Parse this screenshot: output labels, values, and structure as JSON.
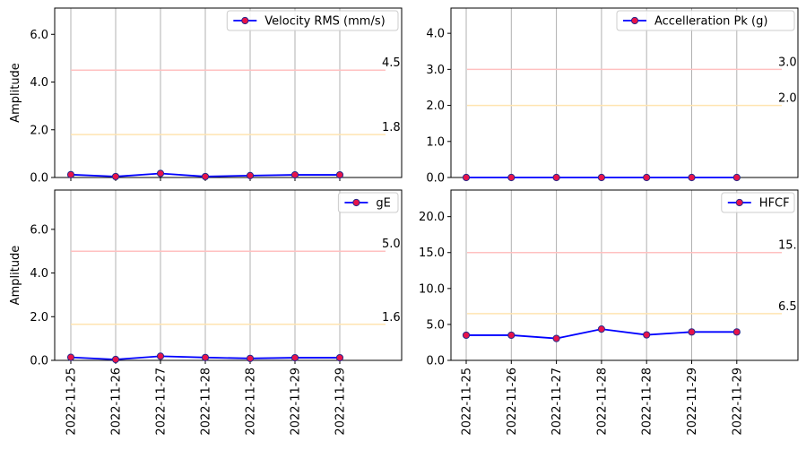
{
  "chart_data": [
    {
      "type": "line",
      "ylabel": "Amplitude",
      "ylim": [
        0,
        7.1
      ],
      "yticks": [
        "0.0",
        "2.0",
        "4.0",
        "6.0"
      ],
      "ytick_values": [
        0,
        2,
        4,
        6
      ],
      "categories": [
        "2022-11-25",
        "2022-11-26",
        "2022-11-27",
        "2022-11-28",
        "2022-11-28",
        "2022-11-29",
        "2022-11-29"
      ],
      "series": [
        {
          "name": "Velocity RMS (mm/s)",
          "values": [
            0.12,
            0.04,
            0.17,
            0.04,
            0.08,
            0.11,
            0.11
          ]
        }
      ],
      "thresholds": [
        {
          "value": 4.5,
          "label": "4.5",
          "color": "#ffc0c0"
        },
        {
          "value": 1.8,
          "label": "1.8",
          "color": "#ffe4b0"
        }
      ],
      "legend": "top-right",
      "grid": "x",
      "show_xticklabels": false
    },
    {
      "type": "line",
      "ylabel": "",
      "ylim": [
        0,
        4.7
      ],
      "yticks": [
        "0.0",
        "1.0",
        "2.0",
        "3.0",
        "4.0"
      ],
      "ytick_values": [
        0,
        1,
        2,
        3,
        4
      ],
      "categories": [
        "2022-11-25",
        "2022-11-26",
        "2022-11-27",
        "2022-11-28",
        "2022-11-28",
        "2022-11-29",
        "2022-11-29"
      ],
      "series": [
        {
          "name": "Accelleration Pk (g)",
          "values": [
            0.0,
            0.0,
            0.0,
            0.0,
            0.0,
            0.0,
            0.0
          ]
        }
      ],
      "thresholds": [
        {
          "value": 3.0,
          "label": "3.0",
          "color": "#ffc0c0"
        },
        {
          "value": 2.0,
          "label": "2.0",
          "color": "#ffe4b0"
        }
      ],
      "legend": "top-right",
      "grid": "x",
      "show_xticklabels": false
    },
    {
      "type": "line",
      "ylabel": "Amplitude",
      "ylim": [
        0,
        7.8
      ],
      "yticks": [
        "0.0",
        "2.0",
        "4.0",
        "6.0"
      ],
      "ytick_values": [
        0,
        2,
        4,
        6
      ],
      "categories": [
        "2022-11-25",
        "2022-11-26",
        "2022-11-27",
        "2022-11-28",
        "2022-11-28",
        "2022-11-29",
        "2022-11-29"
      ],
      "series": [
        {
          "name": "gE",
          "values": [
            0.14,
            0.04,
            0.19,
            0.13,
            0.09,
            0.12,
            0.12
          ]
        }
      ],
      "thresholds": [
        {
          "value": 5.0,
          "label": "5.0",
          "color": "#ffc0c0"
        },
        {
          "value": 1.65,
          "label": "1.6",
          "color": "#ffe4b0"
        }
      ],
      "legend": "top-right",
      "grid": "x",
      "show_xticklabels": true
    },
    {
      "type": "line",
      "ylabel": "",
      "ylim": [
        0,
        23.7
      ],
      "yticks": [
        "0.0",
        "5.0",
        "10.0",
        "15.0",
        "20.0"
      ],
      "ytick_values": [
        0,
        5,
        10,
        15,
        20
      ],
      "categories": [
        "2022-11-25",
        "2022-11-26",
        "2022-11-27",
        "2022-11-28",
        "2022-11-28",
        "2022-11-29",
        "2022-11-29"
      ],
      "series": [
        {
          "name": "HFCF",
          "values": [
            3.5,
            3.5,
            3.05,
            4.35,
            3.55,
            3.95,
            3.95
          ]
        }
      ],
      "thresholds": [
        {
          "value": 15.0,
          "label": "15.",
          "color": "#ffc0c0"
        },
        {
          "value": 6.5,
          "label": "6.5",
          "color": "#ffe4b0"
        }
      ],
      "legend": "top-right",
      "grid": "x",
      "show_xticklabels": true
    }
  ],
  "colors": {
    "line": "#0000ff",
    "marker_fill": "#e8134a",
    "marker_edge": "#2a2a8a",
    "grid": "#b0b0b0",
    "alarm": "#ffc0c0",
    "alert": "#ffe4b0"
  }
}
